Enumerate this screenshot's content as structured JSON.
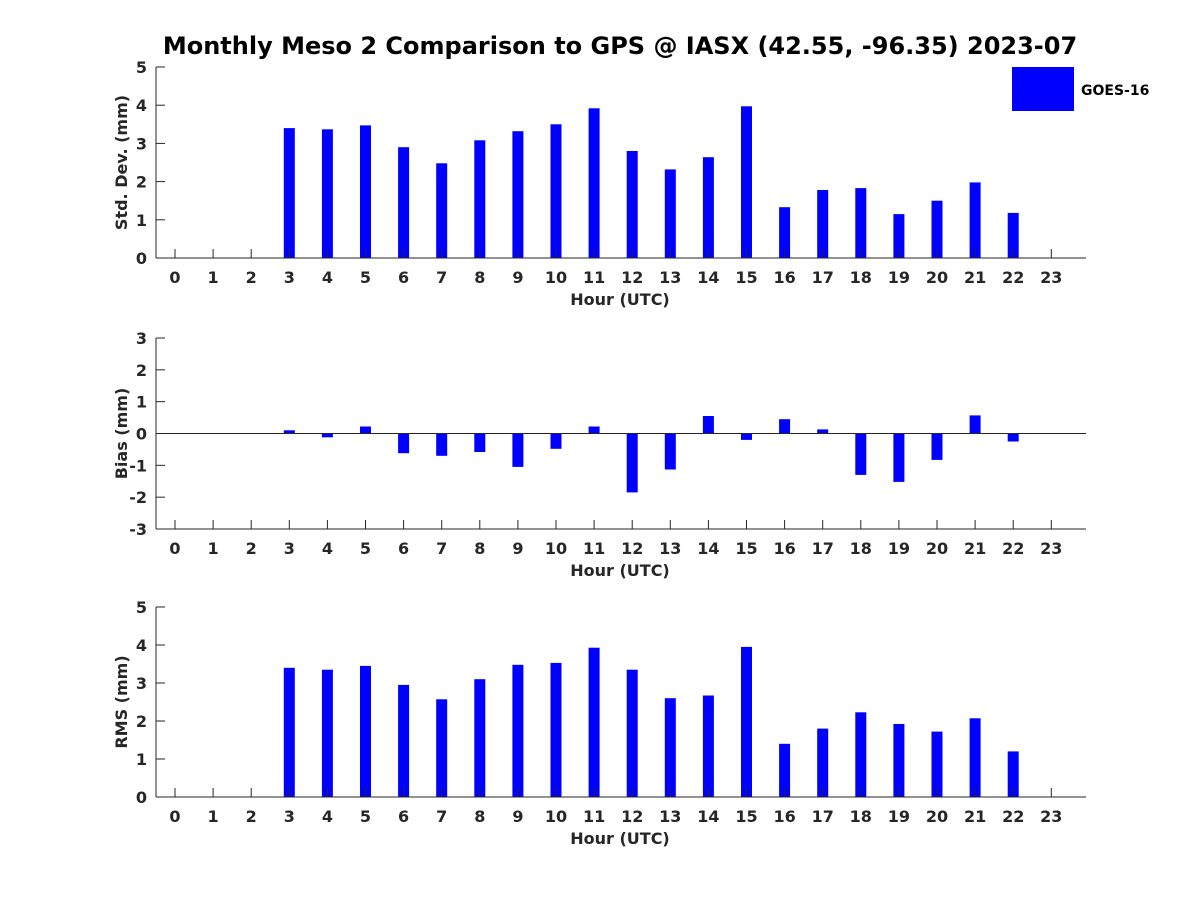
{
  "title": "Monthly Meso 2 Comparison to GPS @ IASX (42.55, -96.35) 2023-07",
  "legend": {
    "label": "GOES-16",
    "color": "#0000ff"
  },
  "chart_data": [
    {
      "type": "bar",
      "name": "std",
      "xlabel": "Hour (UTC)",
      "ylabel": "Std. Dev. (mm)",
      "ylim": [
        0,
        5
      ],
      "yticks": [
        "0",
        "1",
        "2",
        "3",
        "4",
        "5"
      ],
      "categories": [
        "0",
        "1",
        "2",
        "3",
        "4",
        "5",
        "6",
        "7",
        "8",
        "9",
        "10",
        "11",
        "12",
        "13",
        "14",
        "15",
        "16",
        "17",
        "18",
        "19",
        "20",
        "21",
        "22",
        "23"
      ],
      "values": [
        null,
        null,
        null,
        3.4,
        3.37,
        3.47,
        2.9,
        2.48,
        3.08,
        3.32,
        3.5,
        3.92,
        2.8,
        2.32,
        2.64,
        3.97,
        1.33,
        1.78,
        1.83,
        1.15,
        1.5,
        1.98,
        1.18,
        null
      ],
      "color": "#0000ff",
      "grid": false,
      "legend_position": "top-right"
    },
    {
      "type": "bar",
      "name": "bias",
      "xlabel": "Hour (UTC)",
      "ylabel": "Bias (mm)",
      "ylim": [
        -3,
        3
      ],
      "yticks": [
        "-3",
        "-2",
        "-1",
        "0",
        "1",
        "2",
        "3"
      ],
      "categories": [
        "0",
        "1",
        "2",
        "3",
        "4",
        "5",
        "6",
        "7",
        "8",
        "9",
        "10",
        "11",
        "12",
        "13",
        "14",
        "15",
        "16",
        "17",
        "18",
        "19",
        "20",
        "21",
        "22",
        "23"
      ],
      "values": [
        null,
        null,
        null,
        0.1,
        -0.12,
        0.22,
        -0.62,
        -0.7,
        -0.58,
        -1.05,
        -0.48,
        0.22,
        -1.85,
        -1.13,
        0.55,
        -0.2,
        0.45,
        0.13,
        -1.3,
        -1.52,
        -0.83,
        0.57,
        -0.25,
        null
      ],
      "color": "#0000ff",
      "grid": false
    },
    {
      "type": "bar",
      "name": "rms",
      "xlabel": "Hour (UTC)",
      "ylabel": "RMS (mm)",
      "ylim": [
        0,
        5
      ],
      "yticks": [
        "0",
        "1",
        "2",
        "3",
        "4",
        "5"
      ],
      "categories": [
        "0",
        "1",
        "2",
        "3",
        "4",
        "5",
        "6",
        "7",
        "8",
        "9",
        "10",
        "11",
        "12",
        "13",
        "14",
        "15",
        "16",
        "17",
        "18",
        "19",
        "20",
        "21",
        "22",
        "23"
      ],
      "values": [
        null,
        null,
        null,
        3.4,
        3.35,
        3.45,
        2.95,
        2.57,
        3.1,
        3.48,
        3.53,
        3.93,
        3.35,
        2.6,
        2.67,
        3.95,
        1.4,
        1.8,
        2.23,
        1.92,
        1.72,
        2.07,
        1.2,
        null
      ],
      "color": "#0000ff",
      "grid": false
    }
  ]
}
